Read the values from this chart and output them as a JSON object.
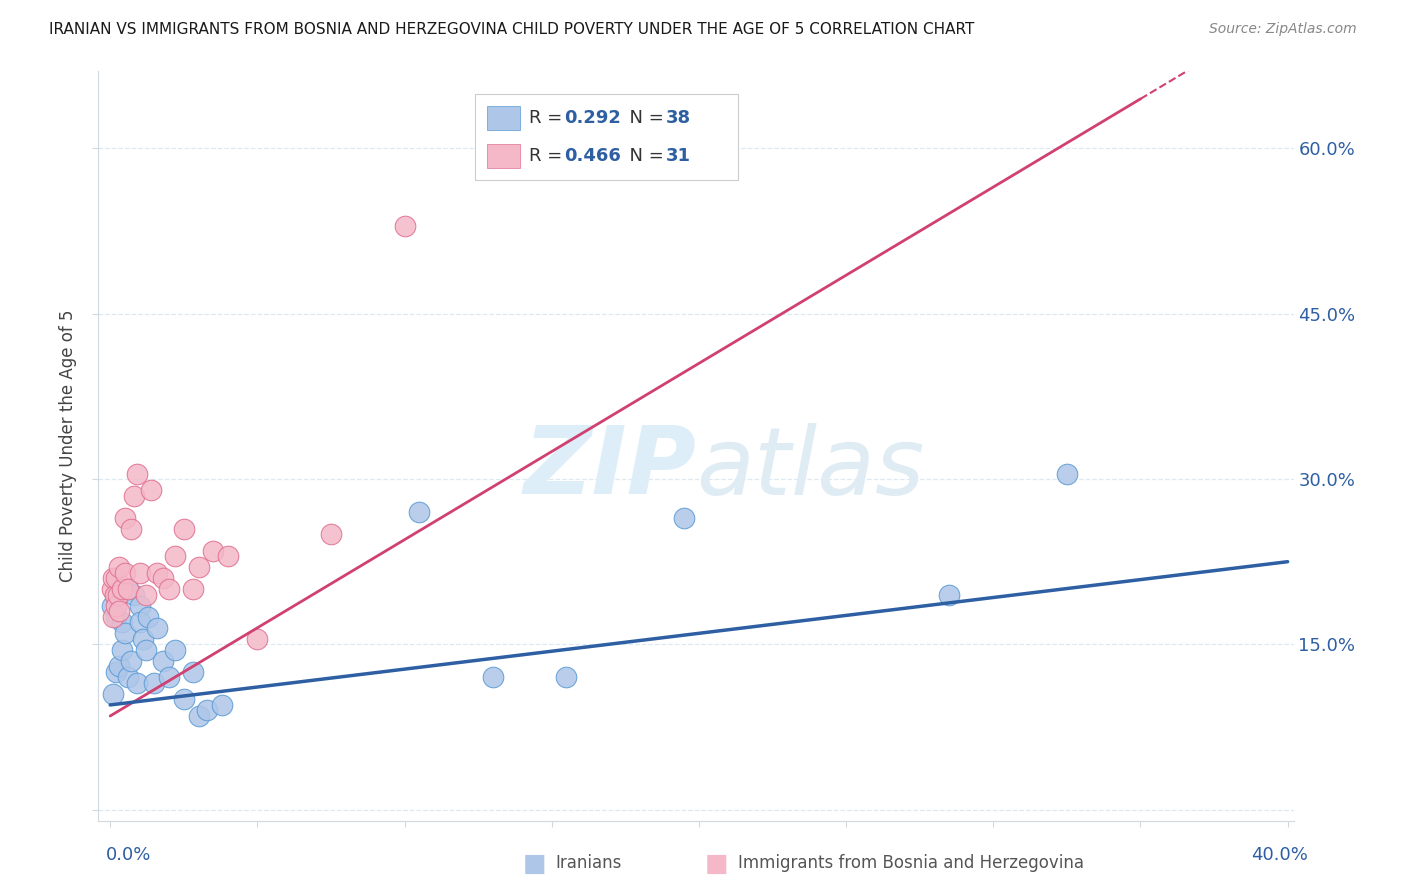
{
  "title": "IRANIAN VS IMMIGRANTS FROM BOSNIA AND HERZEGOVINA CHILD POVERTY UNDER THE AGE OF 5 CORRELATION CHART",
  "source": "Source: ZipAtlas.com",
  "ylabel": "Child Poverty Under the Age of 5",
  "iranians_label": "Iranians",
  "bosnia_label": "Immigrants from Bosnia and Herzegovina",
  "R_iranians": 0.292,
  "N_iranians": 38,
  "R_bosnia": 0.466,
  "N_bosnia": 31,
  "blue_scatter_color": "#aec6e8",
  "blue_edge_color": "#5b9bd5",
  "blue_line_color": "#2e5fa3",
  "pink_scatter_color": "#f4b8c8",
  "pink_edge_color": "#e07090",
  "pink_line_color": "#d04070",
  "watermark_color": "#ddeef8",
  "background_color": "#ffffff",
  "grid_color": "#dde8f0",
  "xlim": [
    -0.004,
    0.402
  ],
  "ylim": [
    -0.01,
    0.67
  ],
  "iranians_x": [
    0.0005,
    0.001,
    0.0015,
    0.002,
    0.002,
    0.0025,
    0.003,
    0.003,
    0.004,
    0.004,
    0.005,
    0.005,
    0.006,
    0.006,
    0.007,
    0.008,
    0.009,
    0.01,
    0.01,
    0.011,
    0.012,
    0.013,
    0.015,
    0.016,
    0.018,
    0.02,
    0.022,
    0.025,
    0.028,
    0.03,
    0.033,
    0.038,
    0.105,
    0.13,
    0.155,
    0.195,
    0.285,
    0.325
  ],
  "iranians_y": [
    0.185,
    0.105,
    0.195,
    0.125,
    0.175,
    0.2,
    0.13,
    0.195,
    0.145,
    0.17,
    0.16,
    0.2,
    0.12,
    0.2,
    0.135,
    0.195,
    0.115,
    0.185,
    0.17,
    0.155,
    0.145,
    0.175,
    0.115,
    0.165,
    0.135,
    0.12,
    0.145,
    0.1,
    0.125,
    0.085,
    0.09,
    0.095,
    0.27,
    0.12,
    0.12,
    0.265,
    0.195,
    0.305
  ],
  "bosnia_x": [
    0.0005,
    0.001,
    0.001,
    0.0015,
    0.002,
    0.002,
    0.0025,
    0.003,
    0.003,
    0.004,
    0.005,
    0.005,
    0.006,
    0.007,
    0.008,
    0.009,
    0.01,
    0.012,
    0.014,
    0.016,
    0.018,
    0.02,
    0.022,
    0.025,
    0.028,
    0.03,
    0.035,
    0.04,
    0.05,
    0.075,
    0.1
  ],
  "bosnia_y": [
    0.2,
    0.175,
    0.21,
    0.195,
    0.185,
    0.21,
    0.195,
    0.18,
    0.22,
    0.2,
    0.215,
    0.265,
    0.2,
    0.255,
    0.285,
    0.305,
    0.215,
    0.195,
    0.29,
    0.215,
    0.21,
    0.2,
    0.23,
    0.255,
    0.2,
    0.22,
    0.235,
    0.23,
    0.155,
    0.25,
    0.53
  ],
  "pink_line_x0": 0.0,
  "pink_line_y0": 0.085,
  "pink_line_x1": 0.35,
  "pink_line_y1": 0.645,
  "blue_line_x0": 0.0,
  "blue_line_y0": 0.095,
  "blue_line_x1": 0.4,
  "blue_line_y1": 0.225
}
